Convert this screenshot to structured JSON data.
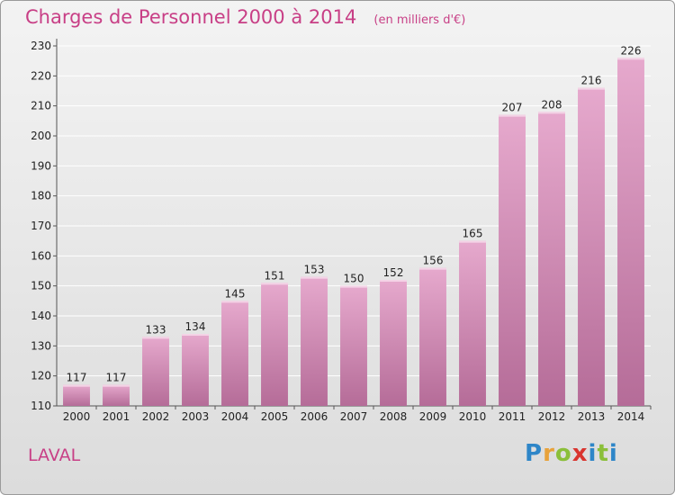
{
  "chart_data": {
    "type": "bar",
    "title": "Charges de Personnel 2000 à 2014",
    "subtitle": "(en milliers d'€)",
    "categories": [
      "2000",
      "2001",
      "2002",
      "2003",
      "2004",
      "2005",
      "2006",
      "2007",
      "2008",
      "2009",
      "2010",
      "2011",
      "2012",
      "2013",
      "2014"
    ],
    "values": [
      117,
      117,
      133,
      134,
      145,
      151,
      153,
      150,
      152,
      156,
      165,
      207,
      208,
      216,
      226
    ],
    "ylim": [
      110,
      230
    ],
    "yticks": [
      110,
      120,
      130,
      140,
      150,
      160,
      170,
      180,
      190,
      200,
      210,
      220,
      230
    ],
    "grid": true,
    "xlabel": "",
    "ylabel": ""
  },
  "place": "LAVAL",
  "logo": {
    "letters": [
      "P",
      "r",
      "o",
      "x",
      "i",
      "t",
      "i"
    ],
    "colors": [
      "#2e86c8",
      "#e8a23a",
      "#8bbf3a",
      "#d9352f",
      "#2e86c8",
      "#8bbf3a",
      "#2e86c8"
    ]
  },
  "colors": {
    "accent": "#c83f86",
    "bar_top": "#e6a9cd",
    "bar_bottom": "#b56c98",
    "grid": "#ffffff",
    "axis": "#555555"
  }
}
